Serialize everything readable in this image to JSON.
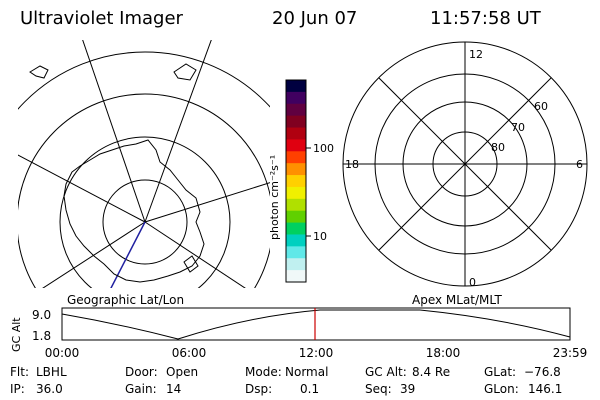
{
  "header": {
    "title": "Ultraviolet Imager",
    "date": "20 Jun 07",
    "time": "11:57:58 UT"
  },
  "left_map": {
    "caption": "Geographic Lat/Lon"
  },
  "right_map": {
    "caption": "Apex MLat/MLT",
    "mlt_labels": {
      "top": "12",
      "bottom": "0",
      "left": "18",
      "right": "6"
    },
    "lat_labels": [
      "60",
      "70",
      "80"
    ]
  },
  "colorbar": {
    "unit_label": "photon cm⁻²s⁻¹",
    "tick_labels": [
      "100",
      "10"
    ],
    "colors": [
      "#000040",
      "#400060",
      "#600040",
      "#800020",
      "#b00010",
      "#e00010",
      "#ff4000",
      "#ff9000",
      "#ffd000",
      "#f0f000",
      "#b0e000",
      "#60d000",
      "#00d060",
      "#00d0c0",
      "#60e8e8",
      "#c0f0f0",
      "#f0f8f8"
    ]
  },
  "altitude_plot": {
    "ylabel": "GC Alt",
    "ytick_labels": [
      "9.0",
      "1.8"
    ],
    "xtick_labels": [
      "00:00",
      "06:00",
      "12:00",
      "18:00",
      "23:59"
    ],
    "marker_time": "11:57:58",
    "marker_color": "#cc0000"
  },
  "info": {
    "row1": [
      {
        "label": "Flt:",
        "value": "LBHL"
      },
      {
        "label": "Door:",
        "value": "Open"
      },
      {
        "label": "Mode:",
        "value": "Normal"
      },
      {
        "label": "GC Alt:",
        "value": "8.4 Re"
      },
      {
        "label": "GLat:",
        "value": "−76.8"
      }
    ],
    "row2": [
      {
        "label": "IP:",
        "value": "36.0"
      },
      {
        "label": "Gain:",
        "value": "14"
      },
      {
        "label": "Dsp:",
        "value": "0.1"
      },
      {
        "label": "Seq:",
        "value": "39"
      },
      {
        "label": "GLon:",
        "value": "146.1"
      }
    ]
  }
}
